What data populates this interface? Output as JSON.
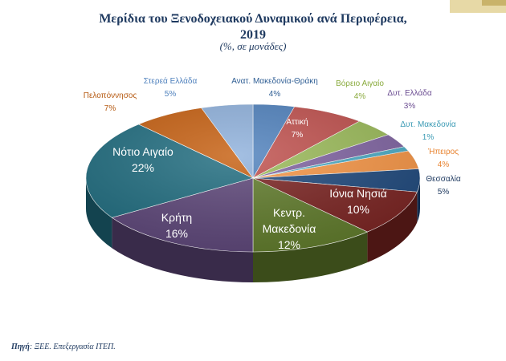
{
  "header": {
    "title_line1": "Μερίδια του Ξενοδοχειακού Δυναμικού ανά Περιφέρεια,",
    "title_line2": "2019",
    "subtitle": "(%, σε μονάδες)"
  },
  "footer": {
    "source_label": "Πηγή",
    "source_text": ": ΞΕΕ. Επεξεργασία ΙΤΕΠ."
  },
  "colors": {
    "title": "#1f3a60"
  },
  "chart_data": {
    "type": "pie",
    "title": "Μερίδια του Ξενοδοχειακού Δυναμικού ανά Περιφέρεια, 2019",
    "subtitle": "(%, σε μονάδες)",
    "unit": "%",
    "slices": [
      {
        "label": "Ανατ. Μακεδονία-Θράκη",
        "value": 4,
        "value_label": "4%",
        "color": "#4f81bd",
        "label_color": "#2f5e94"
      },
      {
        "label": "Αττική",
        "value": 7,
        "value_label": "7%",
        "color": "#c0504d",
        "label_color": "#ffffff"
      },
      {
        "label": "Βόρειο Αιγαίο",
        "value": 4,
        "value_label": "4%",
        "color": "#9bbb59",
        "label_color": "#8aab3e"
      },
      {
        "label": "Δυτ. Ελλάδα",
        "value": 3,
        "value_label": "3%",
        "color": "#8064a2",
        "label_color": "#6d4f93"
      },
      {
        "label": "Δυτ. Μακεδονία",
        "value": 1,
        "value_label": "1%",
        "color": "#4bacc6",
        "label_color": "#3a9ab4"
      },
      {
        "label": "Ήπειρος",
        "value": 4,
        "value_label": "4%",
        "color": "#f79646",
        "label_color": "#e8822e"
      },
      {
        "label": "Θεσσαλία",
        "value": 5,
        "value_label": "5%",
        "color": "#1f497d",
        "label_color": "#1f3a60"
      },
      {
        "label": "Ιόνια Νησιά",
        "value": 10,
        "value_label": "10%",
        "color": "#7a2321",
        "label_color": "#ffffff"
      },
      {
        "label": "Κεντρ. Μακεδονία",
        "value": 12,
        "value_label": "12%",
        "color": "#5f7a2a",
        "label_color": "#ffffff"
      },
      {
        "label": "Κρήτη",
        "value": 16,
        "value_label": "16%",
        "color": "#5c4578",
        "label_color": "#ffffff"
      },
      {
        "label": "Νότιο Αιγαίο",
        "value": 22,
        "value_label": "22%",
        "color": "#1f6c7f",
        "label_color": "#ffffff"
      },
      {
        "label": "Πελοπόννησος",
        "value": 7,
        "value_label": "7%",
        "color": "#c65f10",
        "label_color": "#b65a12"
      },
      {
        "label": "Στερεά Ελλάδα",
        "value": 5,
        "value_label": "5%",
        "color": "#8fb1dc",
        "label_color": "#4f81bd"
      }
    ]
  }
}
